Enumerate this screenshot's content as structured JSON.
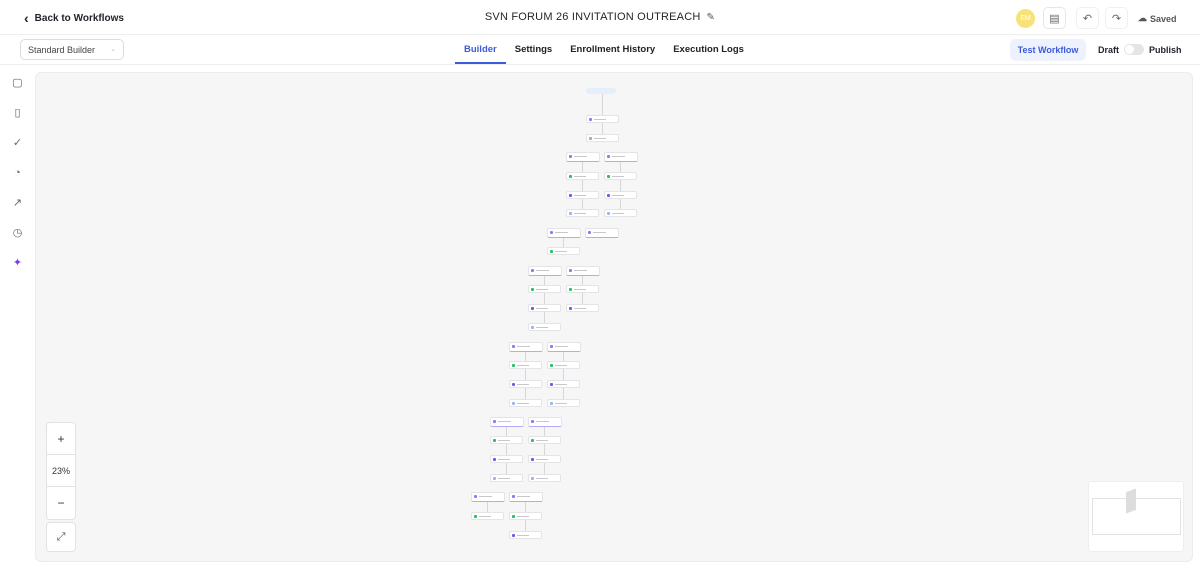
{
  "header": {
    "back_label": "Back to Workflows",
    "title": "SVN FORUM 26 INVITATION OUTREACH",
    "avatar_initials": "EM",
    "saved_label": "Saved"
  },
  "toolbar": {
    "builder_select": "Standard Builder",
    "tabs": [
      {
        "label": "Builder",
        "active": true
      },
      {
        "label": "Settings"
      },
      {
        "label": "Enrollment History"
      },
      {
        "label": "Execution Logs"
      }
    ],
    "test_label": "Test Workflow",
    "draft_label": "Draft",
    "publish_label": "Publish",
    "published": false
  },
  "sidebar": {
    "icons": [
      "chat-icon",
      "document-icon",
      "check-circle-icon",
      "pie-chart-icon",
      "external-link-icon",
      "history-icon",
      "sparkles-icon"
    ]
  },
  "canvas": {
    "zoom_level": "23%",
    "zoom_in": "+",
    "zoom_out": "−",
    "accent": "#3b5bdb"
  }
}
